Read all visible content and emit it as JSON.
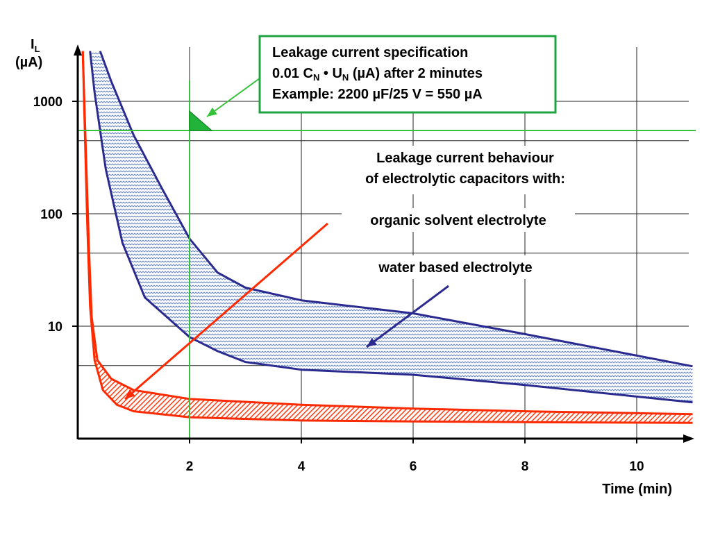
{
  "chart_data": {
    "type": "area",
    "title": "",
    "xlabel": "Time (min)",
    "ylabel_main": "I",
    "ylabel_sub": "L",
    "ylabel_unit": "(µA)",
    "yscale": "log",
    "xlim": [
      0,
      11
    ],
    "ylim": [
      1.2,
      3000
    ],
    "x_ticks": [
      2,
      4,
      6,
      8,
      10
    ],
    "x_tick_labels": [
      "2",
      "4",
      "6",
      "8",
      "10"
    ],
    "y_ticks": [
      10,
      100,
      1000
    ],
    "y_tick_labels": [
      "10",
      "100",
      "1000"
    ],
    "grid": true,
    "series": [
      {
        "name": "organic solvent electrolyte",
        "color": "#ff2a00",
        "upper": [
          [
            0.09,
            2800
          ],
          [
            0.15,
            300
          ],
          [
            0.2,
            50
          ],
          [
            0.25,
            12
          ],
          [
            0.35,
            5
          ],
          [
            0.6,
            3.4
          ],
          [
            1.0,
            2.7
          ],
          [
            2,
            2.25
          ],
          [
            4,
            2.0
          ],
          [
            6,
            1.85
          ],
          [
            8,
            1.75
          ],
          [
            11,
            1.65
          ]
        ],
        "lower": [
          [
            0.09,
            2800
          ],
          [
            0.12,
            700
          ],
          [
            0.17,
            80
          ],
          [
            0.22,
            15
          ],
          [
            0.3,
            5
          ],
          [
            0.45,
            2.7
          ],
          [
            0.7,
            2.0
          ],
          [
            1.0,
            1.75
          ],
          [
            2,
            1.55
          ],
          [
            4,
            1.45
          ],
          [
            6,
            1.42
          ],
          [
            8,
            1.4
          ],
          [
            11,
            1.38
          ]
        ]
      },
      {
        "name": "water based  electrolyte",
        "color": "#2a2a8f",
        "upper": [
          [
            0.4,
            2800
          ],
          [
            0.6,
            1500
          ],
          [
            1.0,
            500
          ],
          [
            1.5,
            170
          ],
          [
            2.0,
            60
          ],
          [
            2.5,
            30
          ],
          [
            3.0,
            22
          ],
          [
            4.0,
            17
          ],
          [
            6.0,
            13
          ],
          [
            8.0,
            8.5
          ],
          [
            11,
            4.4
          ]
        ],
        "lower": [
          [
            0.22,
            2800
          ],
          [
            0.3,
            1200
          ],
          [
            0.5,
            250
          ],
          [
            0.8,
            55
          ],
          [
            1.2,
            18
          ],
          [
            2.0,
            8
          ],
          [
            2.5,
            6
          ],
          [
            3.0,
            4.8
          ],
          [
            4.0,
            4.1
          ],
          [
            6.0,
            3.7
          ],
          [
            8.0,
            3.0
          ],
          [
            11,
            2.1
          ]
        ]
      }
    ],
    "spec_line": {
      "x": 2,
      "y": 550,
      "color": "#36c33a"
    },
    "annotations": {
      "box_line1": "Leakage current specification",
      "box_line2_pre": "0.01 C",
      "box_line2_sub1": "N",
      "box_line2_mid": " • U",
      "box_line2_sub2": "N",
      "box_line2_post": " (µA) after 2 minutes",
      "box_line3": "Example: 2200 µF/25 V = 550 µA",
      "behaviour_line1": "Leakage current behaviour",
      "behaviour_line2": "of electrolytic capacitors with:",
      "organic_label": "organic solvent electrolyte",
      "organic_color": "#ff2a00",
      "water_label": "water based  electrolyte",
      "water_color": "#1f6fc9"
    }
  }
}
